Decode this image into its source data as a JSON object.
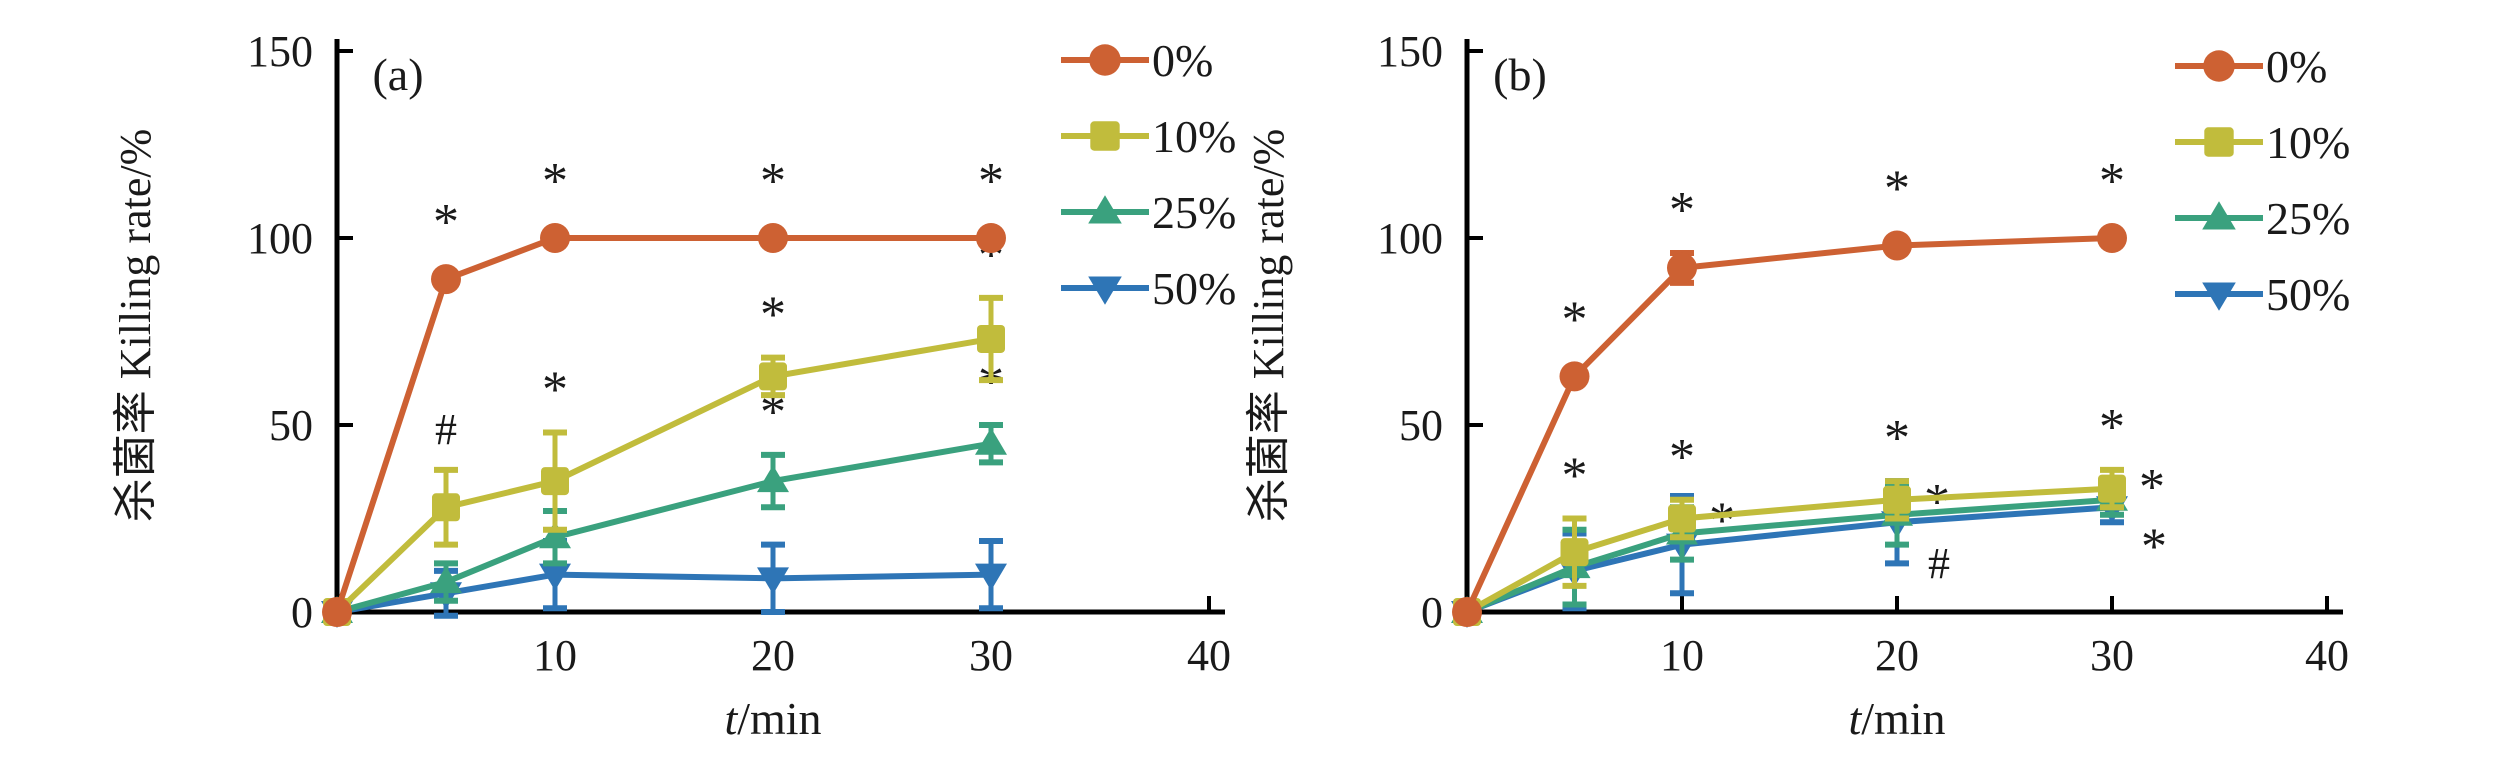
{
  "figure": {
    "background": "#ffffff",
    "axis_color": "#000000",
    "text_color": "#1a1a1a",
    "significance_symbols": {
      "asterisk": "*",
      "hash": "#"
    }
  },
  "chart_data": [
    {
      "type": "line",
      "panel_label": "(a)",
      "xlabel_italic": "t",
      "xlabel_rest": "/min",
      "ylabel": "杀菌率 Killing rate/%",
      "xlim": [
        0,
        40
      ],
      "ylim": [
        0,
        150
      ],
      "xticks": [
        10,
        20,
        30,
        40
      ],
      "yticks": [
        0,
        50,
        100,
        150
      ],
      "x": [
        0,
        5,
        10,
        20,
        30
      ],
      "legend_position": "upper-right",
      "grid": false,
      "series": [
        {
          "name": "0%",
          "color": "#cd6133",
          "marker": "circle",
          "values": [
            0,
            89,
            100,
            100,
            100
          ],
          "errors": [
            0,
            0,
            0,
            0,
            0
          ],
          "annotations": [
            "",
            "*",
            "*",
            "*",
            "*"
          ],
          "ann_pos": [
            "above",
            "above",
            "above",
            "above",
            "above"
          ]
        },
        {
          "name": "10%",
          "color": "#c1bc3c",
          "marker": "square",
          "values": [
            0,
            28,
            35,
            63,
            73
          ],
          "errors": [
            0,
            10,
            13,
            5,
            11
          ],
          "annotations": [
            "",
            "#",
            "*",
            "*",
            "*"
          ],
          "ann_pos": [
            "above",
            "above",
            "above",
            "above",
            "above"
          ]
        },
        {
          "name": "25%",
          "color": "#3aa17e",
          "marker": "triangle-up",
          "values": [
            0,
            8,
            20,
            35,
            45
          ],
          "errors": [
            0,
            5,
            7,
            7,
            5
          ],
          "annotations": [
            "",
            "",
            "",
            "*",
            "*"
          ],
          "ann_pos": [
            "above",
            "above",
            "above",
            "above",
            "above"
          ]
        },
        {
          "name": "50%",
          "color": "#2e75b6",
          "marker": "triangle-down",
          "values": [
            0,
            5,
            10,
            9,
            10
          ],
          "errors": [
            0,
            6,
            9,
            9,
            9
          ],
          "annotations": [
            "",
            "",
            "",
            "",
            ""
          ],
          "ann_pos": [
            "above",
            "above",
            "above",
            "above",
            "above"
          ]
        }
      ]
    },
    {
      "type": "line",
      "panel_label": "(b)",
      "xlabel_italic": "t",
      "xlabel_rest": "/min",
      "ylabel": "杀菌率 Killing rate/%",
      "xlim": [
        0,
        40
      ],
      "ylim": [
        0,
        150
      ],
      "xticks": [
        10,
        20,
        30,
        40
      ],
      "yticks": [
        0,
        50,
        100,
        150
      ],
      "x": [
        0,
        5,
        10,
        20,
        30
      ],
      "legend_position": "upper-right",
      "grid": false,
      "series": [
        {
          "name": "0%",
          "color": "#cd6133",
          "marker": "circle",
          "values": [
            0,
            63,
            92,
            98,
            100
          ],
          "errors": [
            0,
            0,
            4,
            0,
            0
          ],
          "annotations": [
            "",
            "*",
            "*",
            "*",
            "*"
          ],
          "ann_pos": [
            "above",
            "above",
            "above",
            "above",
            "above"
          ]
        },
        {
          "name": "10%",
          "color": "#c1bc3c",
          "marker": "square",
          "values": [
            0,
            16,
            25,
            30,
            33
          ],
          "errors": [
            0,
            9,
            5,
            5,
            5
          ],
          "annotations": [
            "",
            "*",
            "*",
            "*",
            "*"
          ],
          "ann_pos": [
            "above",
            "above",
            "above",
            "above",
            "above"
          ]
        },
        {
          "name": "25%",
          "color": "#3aa17e",
          "marker": "triangle-up",
          "values": [
            0,
            12,
            21,
            26,
            30
          ],
          "errors": [
            0,
            10,
            7,
            8,
            4
          ],
          "annotations": [
            "",
            "",
            "*",
            "*",
            "*"
          ],
          "ann_pos": [
            "above",
            "right",
            "right",
            "right",
            "right"
          ]
        },
        {
          "name": "50%",
          "color": "#2e75b6",
          "marker": "triangle-down",
          "values": [
            0,
            11,
            18,
            24,
            28
          ],
          "errors": [
            0,
            10,
            13,
            11,
            4
          ],
          "annotations": [
            "",
            "",
            "",
            "#",
            "*"
          ],
          "ann_pos": [
            "above",
            "above",
            "above",
            "below-right",
            "below-right"
          ]
        }
      ]
    }
  ]
}
